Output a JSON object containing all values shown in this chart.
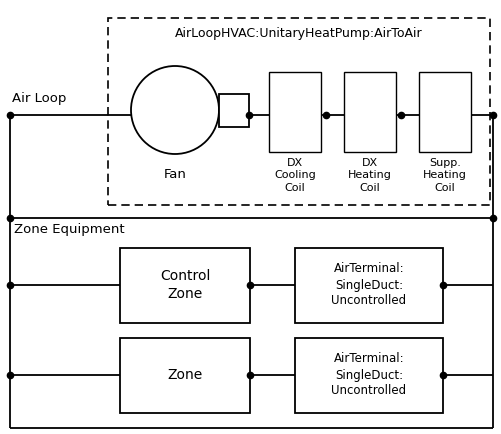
{
  "title": "AirLoopHVAC:UnitaryHeatPump:AirToAir",
  "bg_color": "#ffffff",
  "fig_width": 5.02,
  "fig_height": 4.34,
  "dpi": 100,
  "air_loop_label": "Air Loop",
  "fan_label": "Fan",
  "dx_cooling_label": "DX\nCooling\nCoil",
  "dx_heating_label": "DX\nHeating\nCoil",
  "supp_heating_label": "Supp.\nHeating\nCoil",
  "zone_equip_label": "Zone Equipment",
  "control_zone_label": "Control\nZone",
  "zone_label": "Zone",
  "air_terminal_label": "AirTerminal:\nSingleDuct:\nUncontrolled"
}
